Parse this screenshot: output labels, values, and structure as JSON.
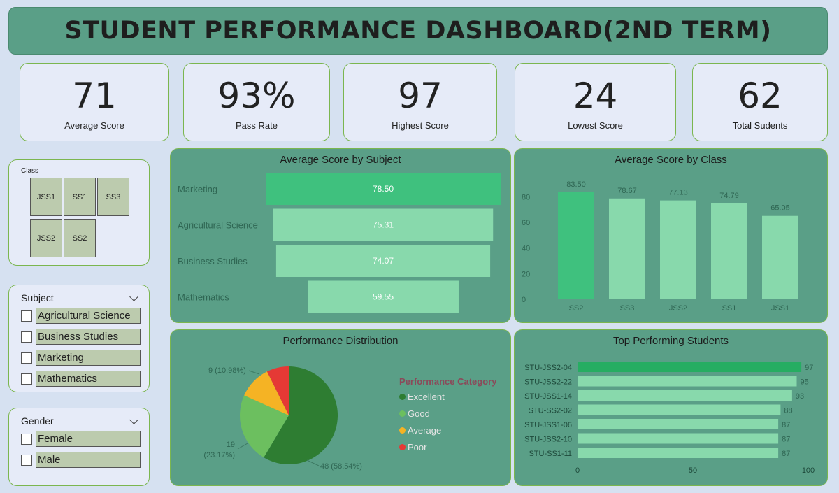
{
  "header": {
    "title": "STUDENT PERFORMANCE DASHBOARD(2ND TERM)"
  },
  "kpis": [
    {
      "value": "71",
      "label": "Average Score"
    },
    {
      "value": "93%",
      "label": "Pass Rate"
    },
    {
      "value": "97",
      "label": "Highest Score"
    },
    {
      "value": "24",
      "label": "Lowest Score"
    },
    {
      "value": "62",
      "label": "Total Sudents"
    }
  ],
  "class_slicer": {
    "title": "Class",
    "tiles": [
      "JSS1",
      "SS1",
      "SS3",
      "JSS2",
      "SS2"
    ]
  },
  "subject_slicer": {
    "title": "Subject",
    "options": [
      "Agricultural Science",
      "Business Studies",
      "Marketing",
      "Mathematics"
    ]
  },
  "gender_slicer": {
    "title": "Gender",
    "options": [
      "Female",
      "Male"
    ]
  },
  "colors": {
    "panel": "#5a9f87",
    "bar_light": "#88d9ac",
    "bar_dark": "#3fc17e",
    "top_bar": "#26ad62"
  },
  "chart_data": [
    {
      "type": "bar",
      "orientation": "horizontal-funnel",
      "title": "Average Score by Subject",
      "categories": [
        "Marketing",
        "Agricultural Science",
        "Business Studies",
        "Mathematics"
      ],
      "values": [
        78.5,
        75.31,
        74.07,
        59.55
      ],
      "labels": [
        "78.50",
        "75.31",
        "74.07",
        "59.55"
      ]
    },
    {
      "type": "bar",
      "title": "Average Score by Class",
      "categories": [
        "SS2",
        "SS3",
        "JSS2",
        "SS1",
        "JSS1"
      ],
      "values": [
        83.5,
        78.67,
        77.13,
        74.79,
        65.05
      ],
      "labels": [
        "83.50",
        "78.67",
        "77.13",
        "74.79",
        "65.05"
      ],
      "yticks": [
        "0",
        "20",
        "40",
        "60",
        "80"
      ],
      "ylim": [
        0,
        90
      ]
    },
    {
      "type": "pie",
      "title": "Performance Distribution",
      "legend_title": "Performance Category",
      "slices": [
        {
          "name": "Excellent",
          "value": 48,
          "color": "#2e7d32"
        },
        {
          "name": "Good",
          "value": 19,
          "color": "#6cbf5f"
        },
        {
          "name": "Average",
          "value": 9,
          "color": "#f5b324"
        },
        {
          "name": "Poor",
          "value": 6,
          "color": "#e53935"
        }
      ],
      "labels": {
        "excellent": "48 (58.54%)",
        "good_1": "19",
        "good_2": "(23.17%)",
        "average": "9 (10.98%)"
      }
    },
    {
      "type": "bar",
      "orientation": "horizontal",
      "title": "Top Performing Students",
      "categories": [
        "STU-JSS2-04",
        "STU-JSS2-22",
        "STU-JSS1-14",
        "STU-SS2-02",
        "STU-JSS1-06",
        "STU-JSS2-10",
        "STU-SS1-11"
      ],
      "values": [
        97,
        95,
        93,
        88,
        87,
        87,
        87
      ],
      "xticks": [
        "0",
        "50",
        "100"
      ],
      "xlim": [
        0,
        100
      ]
    }
  ]
}
